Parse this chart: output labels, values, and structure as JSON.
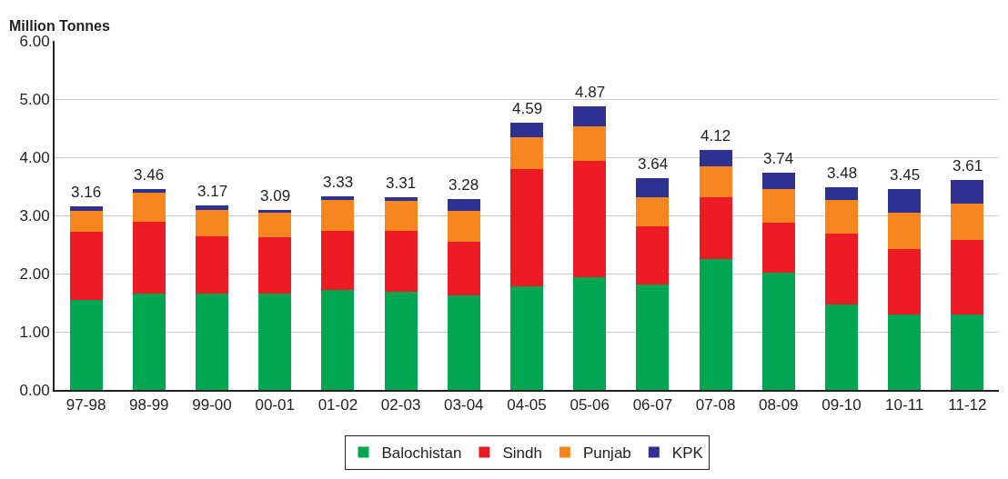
{
  "chart_data": {
    "type": "bar",
    "stacked": true,
    "ylabel": "Million Tonnes",
    "categories": [
      "97-98",
      "98-99",
      "99-00",
      "00-01",
      "01-02",
      "02-03",
      "03-04",
      "04-05",
      "05-06",
      "06-07",
      "07-08",
      "08-09",
      "09-10",
      "10-11",
      "11-12"
    ],
    "series": [
      {
        "name": "Balochistan",
        "color": "#00a651",
        "values": [
          1.54,
          1.66,
          1.66,
          1.66,
          1.72,
          1.69,
          1.62,
          1.78,
          1.94,
          1.81,
          2.25,
          2.02,
          1.47,
          1.3,
          1.3
        ]
      },
      {
        "name": "Sindh",
        "color": "#ed1c24",
        "values": [
          1.18,
          1.23,
          0.98,
          0.97,
          1.01,
          1.04,
          0.92,
          2.01,
          2.0,
          1.0,
          1.06,
          0.86,
          1.21,
          1.12,
          1.28
        ]
      },
      {
        "name": "Punjab",
        "color": "#f7861f",
        "values": [
          0.36,
          0.5,
          0.46,
          0.42,
          0.53,
          0.52,
          0.54,
          0.55,
          0.59,
          0.5,
          0.54,
          0.57,
          0.59,
          0.62,
          0.63
        ]
      },
      {
        "name": "KPK",
        "color": "#2e3192",
        "values": [
          0.08,
          0.07,
          0.07,
          0.04,
          0.07,
          0.06,
          0.2,
          0.25,
          0.34,
          0.33,
          0.27,
          0.29,
          0.21,
          0.41,
          0.4
        ]
      }
    ],
    "totals": [
      "3.16",
      "3.46",
      "3.17",
      "3.09",
      "3.33",
      "3.31",
      "3.28",
      "4.59",
      "4.87",
      "3.64",
      "4.12",
      "3.74",
      "3.48",
      "3.45",
      "3.61"
    ],
    "ylim": [
      0,
      6
    ],
    "yticks": [
      {
        "value": 0,
        "label": "0.00"
      },
      {
        "value": 1,
        "label": "1.00"
      },
      {
        "value": 2,
        "label": "2.00"
      },
      {
        "value": 3,
        "label": "3.00"
      },
      {
        "value": 4,
        "label": "4.00"
      },
      {
        "value": 5,
        "label": "5.00"
      },
      {
        "value": 6,
        "label": "6.00"
      }
    ],
    "grid": "y",
    "legend": "bottom"
  }
}
